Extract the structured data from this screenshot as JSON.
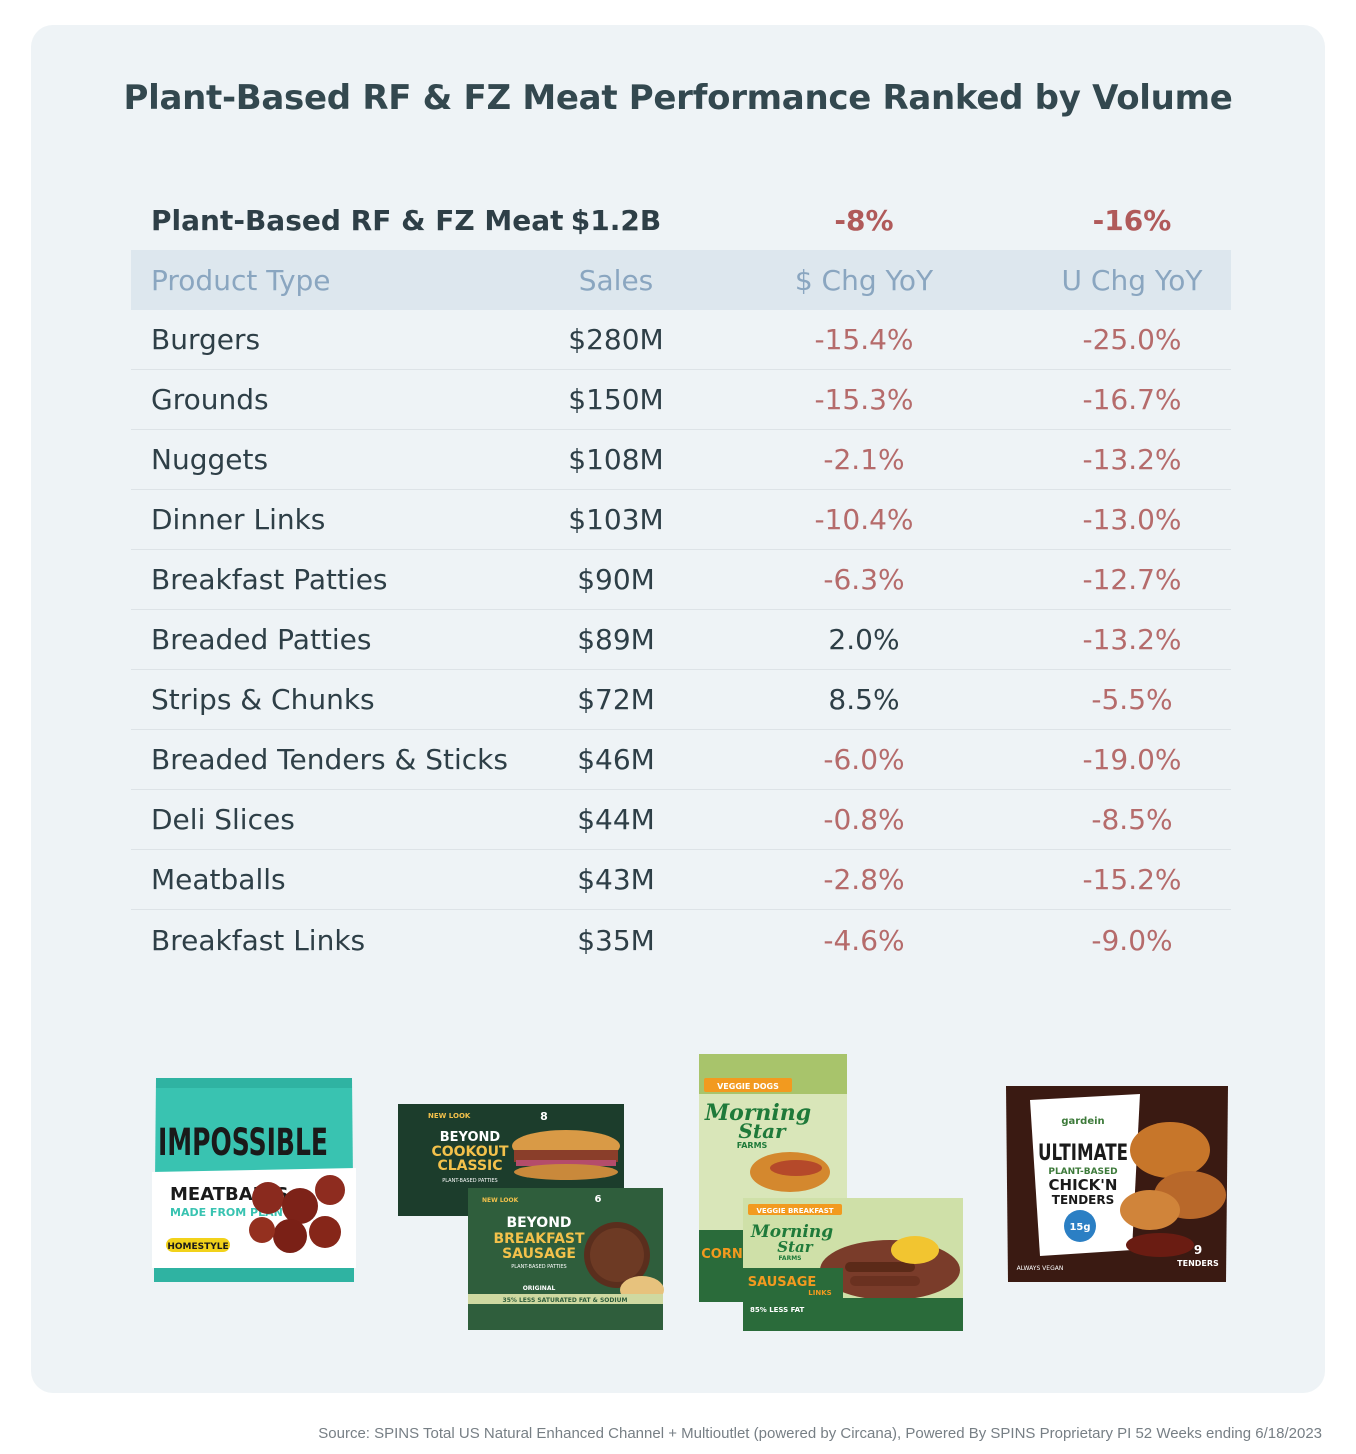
{
  "title": "Plant-Based RF & FZ Meat Performance Ranked by Volume",
  "total_row": {
    "label": "Plant-Based RF & FZ Meat",
    "sales": "$1.2B",
    "dollar_chg": "-8%",
    "unit_chg": "-16%"
  },
  "columns": {
    "type": "Product Type",
    "sales": "Sales",
    "dollar_chg": "$ Chg YoY",
    "unit_chg": "U Chg YoY"
  },
  "chart_data": {
    "type": "table",
    "title": "Plant-Based RF & FZ Meat Performance Ranked by Volume",
    "columns": [
      "Product Type",
      "Sales",
      "$ Chg YoY",
      "U Chg YoY"
    ],
    "rows": [
      {
        "type": "Burgers",
        "sales": "$280M",
        "dollar_chg": "-15.4%",
        "unit_chg": "-25.0%"
      },
      {
        "type": "Grounds",
        "sales": "$150M",
        "dollar_chg": "-15.3%",
        "unit_chg": "-16.7%"
      },
      {
        "type": "Nuggets",
        "sales": "$108M",
        "dollar_chg": "-2.1%",
        "unit_chg": "-13.2%"
      },
      {
        "type": "Dinner Links",
        "sales": "$103M",
        "dollar_chg": "-10.4%",
        "unit_chg": "-13.0%"
      },
      {
        "type": "Breakfast Patties",
        "sales": "$90M",
        "dollar_chg": "-6.3%",
        "unit_chg": "-12.7%"
      },
      {
        "type": "Breaded Patties",
        "sales": "$89M",
        "dollar_chg": "2.0%",
        "unit_chg": "-13.2%"
      },
      {
        "type": "Strips & Chunks",
        "sales": "$72M",
        "dollar_chg": "8.5%",
        "unit_chg": "-5.5%"
      },
      {
        "type": "Breaded Tenders & Sticks",
        "sales": "$46M",
        "dollar_chg": "-6.0%",
        "unit_chg": "-19.0%"
      },
      {
        "type": "Deli Slices",
        "sales": "$44M",
        "dollar_chg": "-0.8%",
        "unit_chg": "-8.5%"
      },
      {
        "type": "Meatballs",
        "sales": "$43M",
        "dollar_chg": "-2.8%",
        "unit_chg": "-15.2%"
      },
      {
        "type": "Breakfast Links",
        "sales": "$35M",
        "dollar_chg": "-4.6%",
        "unit_chg": "-9.0%"
      }
    ]
  },
  "products": {
    "impossible": {
      "brand": "IMPOSSIBLE",
      "name": "MEATBALLS",
      "sub": "MADE FROM PLANTS",
      "badge": "HOMESTYLE"
    },
    "beyond_burger": {
      "brand": "BEYOND",
      "name_1": "COOKOUT",
      "name_2": "CLASSIC",
      "sub": "PLANT-BASED PATTIES",
      "count": "8",
      "new": "NEW LOOK"
    },
    "beyond_sausage": {
      "brand": "BEYOND",
      "name_1": "BREAKFAST",
      "name_2": "SAUSAGE",
      "sub": "PLANT-BASED PATTIES",
      "count": "6",
      "flavor": "ORIGINAL",
      "claim": "35% LESS SATURATED FAT & SODIUM"
    },
    "morningstar_dogs": {
      "tag": "VEGGIE DOGS",
      "brand_1": "Morning",
      "brand_2": "Star",
      "brand_3": "FARMS",
      "name": "CORN"
    },
    "morningstar_links": {
      "tag": "VEGGIE BREAKFAST",
      "brand_1": "Morning",
      "brand_2": "Star",
      "brand_3": "FARMS",
      "name_1": "SAUSAGE",
      "name_2": "LINKS",
      "claim": "85% LESS FAT"
    },
    "gardein": {
      "brand": "gardein",
      "name_1": "ULTIMATE",
      "name_2": "PLANT-BASED",
      "name_3": "CHICK'N",
      "name_4": "TENDERS",
      "protein": "15g",
      "count": "9",
      "count_label": "TENDERS",
      "vegan": "ALWAYS VEGAN"
    }
  },
  "colors": {
    "card": "#eef3f6",
    "header_bg": "#dde7ee",
    "header_text": "#8aa6c0",
    "negative": "#b56b6b",
    "text": "#2e3f47"
  },
  "source": "Source: SPINS Total US Natural Enhanced Channel + Multioutlet (powered by Circana), Powered By SPINS Proprietary PI 52 Weeks ending 6/18/2023"
}
